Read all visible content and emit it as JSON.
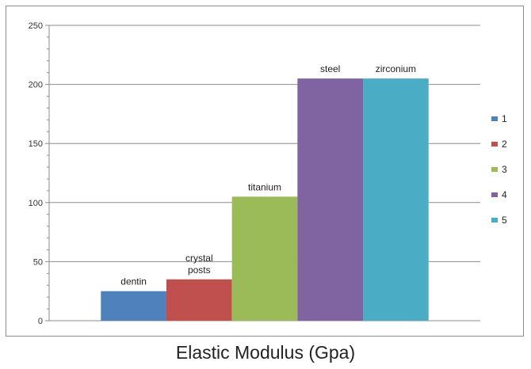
{
  "caption": "Elastic Modulus (Gpa)",
  "chart_data": {
    "type": "bar",
    "title": "",
    "xlabel": "",
    "ylabel": "",
    "ylim": [
      0,
      250
    ],
    "yticks": [
      0,
      50,
      100,
      150,
      200,
      250
    ],
    "grid": true,
    "legend_position": "right",
    "series": [
      {
        "name": "1",
        "value": 25,
        "label": "dentin",
        "color": "#4f81bd"
      },
      {
        "name": "2",
        "value": 35,
        "label": "crystal posts",
        "color": "#c0504d"
      },
      {
        "name": "3",
        "value": 105,
        "label": "titanium",
        "color": "#9bbb59"
      },
      {
        "name": "4",
        "value": 205,
        "label": "steel",
        "color": "#8064a2"
      },
      {
        "name": "5",
        "value": 205,
        "label": "zirconium",
        "color": "#4bacc6"
      }
    ]
  }
}
